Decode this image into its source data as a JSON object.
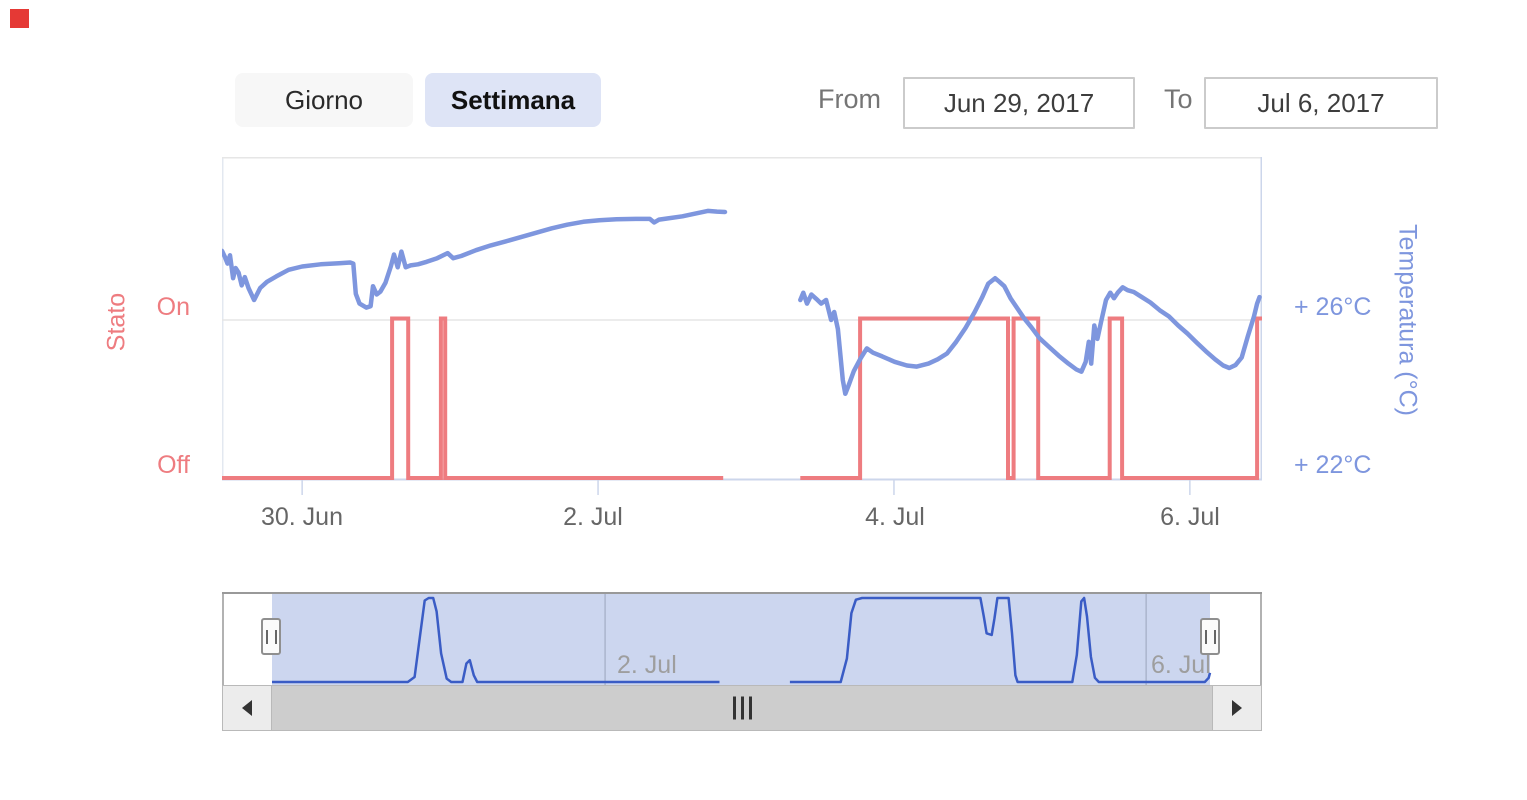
{
  "marker": {
    "color": "#e53935"
  },
  "toolbar": {
    "buttons": [
      {
        "label": "Giorno",
        "active": false
      },
      {
        "label": "Settimana",
        "active": true
      }
    ],
    "range": {
      "from_label": "From",
      "from_value": "Jun 29, 2017",
      "to_label": "To",
      "to_value": "Jul 6, 2017"
    }
  },
  "colors": {
    "temperature_line": "#7e96de",
    "state_line": "#ee7c80",
    "axis_line": "#ccd6eb",
    "grid_line": "#e6e6e6",
    "plot_border": "#e3e8f0",
    "x_label": "#666666",
    "nav_line": "#3a5cc5",
    "nav_mask": "#ccd6ef",
    "nav_outline": "#999999",
    "nav_grid": "#8c96ad",
    "nav_label": "#9e9e9e",
    "scroll_track": "#cdcdcd",
    "scroll_button": "#ececec",
    "scroll_border": "#b9b9b9",
    "scroll_grip": "#333333",
    "button_active_bg": "#dee4f6",
    "button_inactive_bg": "#f7f7f7"
  },
  "chart_data": {
    "type": "line",
    "title": "",
    "x_axis": {
      "unit": "hours since 2017-06-29T00:00",
      "range": [
        11.0,
        179.7
      ],
      "ticks": [
        {
          "t": 24,
          "label": "30. Jun"
        },
        {
          "t": 72,
          "label": "2. Jul"
        },
        {
          "t": 120,
          "label": "4. Jul"
        },
        {
          "t": 168,
          "label": "6. Jul"
        }
      ],
      "grid": false
    },
    "y_axis_left": {
      "title": "Stato",
      "labels": [
        "On",
        "Off"
      ]
    },
    "y_axis_right": {
      "title": "Temperatura (°C)",
      "ticks": [
        {
          "value": 26,
          "label": "+ 26°C"
        },
        {
          "value": 22,
          "label": "+ 22°C"
        }
      ],
      "range": [
        21.6,
        30.5
      ]
    },
    "series": [
      {
        "name": "Stato",
        "type": "step",
        "color": "#ee7c80",
        "segments": [
          {
            "t_start": 11.0,
            "t_end": 92.3,
            "on_intervals": [
              [
                38.6,
                41.2
              ],
              [
                46.5,
                47.2
              ]
            ]
          },
          {
            "t_start": 104.8,
            "t_end": 179.7,
            "on_intervals": [
              [
                114.5,
                138.5
              ],
              [
                139.4,
                143.4
              ],
              [
                155.0,
                157.0
              ],
              [
                178.9,
                179.7
              ]
            ]
          }
        ]
      },
      {
        "name": "Temperatura",
        "type": "line",
        "color": "#7e96de",
        "unit": "°C",
        "segments": [
          [
            [
              11.0,
              27.9
            ],
            [
              11.5,
              27.72
            ],
            [
              11.9,
              27.55
            ],
            [
              12.3,
              27.78
            ],
            [
              12.8,
              27.15
            ],
            [
              13.2,
              27.43
            ],
            [
              13.7,
              27.3
            ],
            [
              14.2,
              26.95
            ],
            [
              14.7,
              27.18
            ],
            [
              15.3,
              26.88
            ],
            [
              16.2,
              26.55
            ],
            [
              17.2,
              26.88
            ],
            [
              18.3,
              27.05
            ],
            [
              19.8,
              27.2
            ],
            [
              21.8,
              27.38
            ],
            [
              24.0,
              27.47
            ],
            [
              27.0,
              27.53
            ],
            [
              30.0,
              27.56
            ],
            [
              31.8,
              27.58
            ],
            [
              32.3,
              27.55
            ],
            [
              32.7,
              26.72
            ],
            [
              33.3,
              26.45
            ],
            [
              34.4,
              26.34
            ],
            [
              35.1,
              26.38
            ],
            [
              35.5,
              26.93
            ],
            [
              36.1,
              26.7
            ],
            [
              36.7,
              26.78
            ],
            [
              37.5,
              27.02
            ],
            [
              38.4,
              27.48
            ],
            [
              38.9,
              27.8
            ],
            [
              39.5,
              27.45
            ],
            [
              40.1,
              27.88
            ],
            [
              40.8,
              27.45
            ],
            [
              41.6,
              27.5
            ],
            [
              42.8,
              27.53
            ],
            [
              44.2,
              27.6
            ],
            [
              45.9,
              27.7
            ],
            [
              47.6,
              27.84
            ],
            [
              48.5,
              27.7
            ],
            [
              49.8,
              27.76
            ],
            [
              52.2,
              27.92
            ],
            [
              54.6,
              28.05
            ],
            [
              57.0,
              28.16
            ],
            [
              59.5,
              28.28
            ],
            [
              62.0,
              28.4
            ],
            [
              64.5,
              28.52
            ],
            [
              67.0,
              28.62
            ],
            [
              69.6,
              28.7
            ],
            [
              72.2,
              28.74
            ],
            [
              75.0,
              28.77
            ],
            [
              78.2,
              28.78
            ],
            [
              80.4,
              28.78
            ],
            [
              81.1,
              28.68
            ],
            [
              81.9,
              28.76
            ],
            [
              83.2,
              28.79
            ],
            [
              85.7,
              28.85
            ],
            [
              87.6,
              28.92
            ],
            [
              89.8,
              29.0
            ],
            [
              91.3,
              28.98
            ],
            [
              92.6,
              28.97
            ]
          ],
          [
            [
              104.8,
              26.55
            ],
            [
              105.3,
              26.75
            ],
            [
              105.9,
              26.45
            ],
            [
              106.6,
              26.7
            ],
            [
              107.4,
              26.58
            ],
            [
              108.2,
              26.45
            ],
            [
              109.0,
              26.55
            ],
            [
              109.8,
              26.0
            ],
            [
              110.3,
              26.22
            ],
            [
              110.9,
              25.75
            ],
            [
              111.7,
              24.35
            ],
            [
              112.1,
              23.97
            ],
            [
              112.6,
              24.18
            ],
            [
              113.5,
              24.6
            ],
            [
              114.6,
              24.95
            ],
            [
              115.6,
              25.22
            ],
            [
              116.6,
              25.1
            ],
            [
              118.1,
              25.0
            ],
            [
              120.1,
              24.85
            ],
            [
              122.1,
              24.75
            ],
            [
              123.7,
              24.72
            ],
            [
              125.6,
              24.8
            ],
            [
              127.1,
              24.92
            ],
            [
              128.6,
              25.08
            ],
            [
              130.1,
              25.4
            ],
            [
              131.6,
              25.78
            ],
            [
              133.1,
              26.22
            ],
            [
              134.3,
              26.62
            ],
            [
              135.3,
              27.0
            ],
            [
              136.4,
              27.15
            ],
            [
              137.1,
              27.05
            ],
            [
              137.9,
              26.93
            ],
            [
              138.9,
              26.6
            ],
            [
              139.9,
              26.35
            ],
            [
              141.1,
              26.05
            ],
            [
              142.3,
              25.8
            ],
            [
              143.6,
              25.5
            ],
            [
              145.1,
              25.27
            ],
            [
              146.7,
              25.02
            ],
            [
              148.3,
              24.8
            ],
            [
              149.6,
              24.64
            ],
            [
              150.4,
              24.58
            ],
            [
              151.1,
              24.85
            ],
            [
              151.6,
              25.4
            ],
            [
              152.0,
              24.8
            ],
            [
              152.5,
              25.85
            ],
            [
              153.0,
              25.48
            ],
            [
              153.6,
              25.95
            ],
            [
              154.4,
              26.55
            ],
            [
              155.1,
              26.75
            ],
            [
              155.7,
              26.6
            ],
            [
              156.3,
              26.75
            ],
            [
              157.1,
              26.9
            ],
            [
              157.9,
              26.82
            ],
            [
              158.9,
              26.77
            ],
            [
              160.1,
              26.64
            ],
            [
              161.6,
              26.48
            ],
            [
              163.1,
              26.27
            ],
            [
              164.6,
              26.1
            ],
            [
              166.1,
              25.85
            ],
            [
              167.6,
              25.63
            ],
            [
              169.1,
              25.38
            ],
            [
              170.6,
              25.14
            ],
            [
              172.1,
              24.92
            ],
            [
              173.4,
              24.75
            ],
            [
              174.4,
              24.68
            ],
            [
              175.4,
              24.76
            ],
            [
              176.4,
              24.97
            ],
            [
              177.4,
              25.55
            ],
            [
              178.4,
              26.1
            ],
            [
              178.9,
              26.45
            ],
            [
              179.3,
              26.63
            ]
          ]
        ]
      }
    ]
  },
  "navigator": {
    "t_start": 12.9,
    "t_end": 179.3,
    "gridline_hours": [
      72,
      168
    ],
    "labels": [
      {
        "t": 72,
        "label": "2. Jul"
      },
      {
        "t": 168,
        "label": "6. Jul"
      }
    ],
    "curve_segments": [
      [
        [
          12.9,
          0
        ],
        [
          37.0,
          0
        ],
        [
          38.2,
          0.06
        ],
        [
          39.3,
          0.62
        ],
        [
          40.0,
          0.97
        ],
        [
          40.7,
          1.0
        ],
        [
          41.5,
          1.0
        ],
        [
          42.1,
          0.84
        ],
        [
          42.9,
          0.34
        ],
        [
          43.9,
          0.04
        ],
        [
          44.7,
          0
        ],
        [
          46.7,
          0
        ],
        [
          47.4,
          0.22
        ],
        [
          48.0,
          0.26
        ],
        [
          48.7,
          0.08
        ],
        [
          49.3,
          0
        ],
        [
          92.3,
          0
        ]
      ],
      [
        [
          104.8,
          0
        ],
        [
          113.8,
          0
        ],
        [
          114.9,
          0.28
        ],
        [
          115.7,
          0.82
        ],
        [
          116.5,
          0.98
        ],
        [
          117.6,
          1.0
        ],
        [
          138.6,
          1.0
        ],
        [
          139.2,
          0.78
        ],
        [
          139.7,
          0.58
        ],
        [
          140.6,
          0.56
        ],
        [
          141.1,
          0.76
        ],
        [
          141.6,
          1.0
        ],
        [
          143.6,
          1.0
        ],
        [
          144.2,
          0.58
        ],
        [
          144.8,
          0.08
        ],
        [
          145.2,
          0
        ],
        [
          154.9,
          0
        ],
        [
          155.7,
          0.32
        ],
        [
          156.5,
          0.96
        ],
        [
          157.0,
          1.0
        ],
        [
          157.5,
          0.78
        ],
        [
          158.2,
          0.3
        ],
        [
          158.9,
          0.05
        ],
        [
          159.6,
          0
        ],
        [
          178.4,
          0
        ],
        [
          179.1,
          0.05
        ],
        [
          179.4,
          0.11
        ]
      ]
    ]
  }
}
